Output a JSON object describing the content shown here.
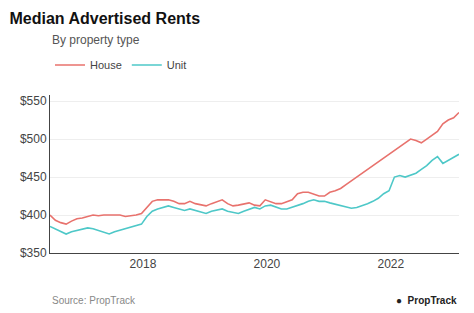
{
  "chart_data": {
    "type": "line",
    "title": "Median Advertised Rents",
    "subtitle": "By property type",
    "annotations": [
      "Source: PropTrack",
      "●  PropTrack"
    ],
    "x": [
      2016.5,
      2016.586842,
      2016.673684,
      2016.760526,
      2016.847368,
      2016.934211,
      2017.021053,
      2017.107895,
      2017.194737,
      2017.281579,
      2017.368421,
      2017.455263,
      2017.542105,
      2017.628947,
      2017.715789,
      2017.802632,
      2017.889474,
      2017.976316,
      2018.063158,
      2018.15,
      2018.236842,
      2018.323684,
      2018.410526,
      2018.497368,
      2018.584211,
      2018.671053,
      2018.757895,
      2018.844737,
      2018.931579,
      2019.018421,
      2019.105263,
      2019.192105,
      2019.278947,
      2019.365789,
      2019.452632,
      2019.539474,
      2019.626316,
      2019.713158,
      2019.8,
      2019.886842,
      2019.973684,
      2020.060526,
      2020.147368,
      2020.234211,
      2020.321053,
      2020.407895,
      2020.494737,
      2020.581579,
      2020.668421,
      2020.755263,
      2020.842105,
      2020.928947,
      2021.015789,
      2021.102632,
      2021.189474,
      2021.276316,
      2021.363158,
      2021.45,
      2021.536842,
      2021.623684,
      2021.710526,
      2021.797368,
      2021.884211,
      2021.971053,
      2022.057895,
      2022.144737,
      2022.231579,
      2022.318421,
      2022.405263,
      2022.492105,
      2022.578947,
      2022.665789,
      2022.752632,
      2022.839474,
      2022.926316,
      2023.013158,
      2023.1
    ],
    "series": [
      {
        "name": "House",
        "color": "#e8726d",
        "values": [
          400,
          393,
          390,
          388,
          392,
          395,
          396,
          398,
          400,
          399,
          400,
          400,
          400,
          400,
          398,
          399,
          400,
          402,
          410,
          418,
          420,
          420,
          420,
          418,
          415,
          415,
          418,
          415,
          413,
          412,
          415,
          418,
          420,
          415,
          412,
          413,
          415,
          416,
          413,
          412,
          420,
          418,
          415,
          415,
          418,
          420,
          428,
          430,
          430,
          428,
          425,
          425,
          430,
          432,
          435,
          440,
          445,
          450,
          455,
          460,
          465,
          470,
          475,
          480,
          485,
          490,
          495,
          500,
          498,
          495,
          500,
          505,
          510,
          520,
          525,
          528,
          535
        ]
      },
      {
        "name": "Unit",
        "color": "#4ec8c8",
        "values": [
          385,
          382,
          378,
          375,
          378,
          380,
          382,
          383,
          382,
          380,
          378,
          375,
          378,
          380,
          382,
          383,
          385,
          388,
          398,
          405,
          408,
          410,
          412,
          410,
          408,
          406,
          408,
          406,
          405,
          402,
          405,
          407,
          408,
          405,
          403,
          402,
          405,
          408,
          410,
          408,
          412,
          413,
          410,
          408,
          408,
          410,
          412,
          415,
          418,
          420,
          418,
          418,
          416,
          414,
          412,
          410,
          409,
          410,
          412,
          415,
          418,
          422,
          428,
          432,
          450,
          452,
          450,
          452,
          455,
          460,
          465,
          472,
          477,
          468,
          472,
          476,
          480
        ]
      }
    ],
    "xlim": [
      2016.5,
      2023.1
    ],
    "xticks": [
      2018,
      2020,
      2022
    ],
    "ylim": [
      350,
      558
    ],
    "yticks": [
      {
        "value": 350,
        "label": "$350"
      },
      {
        "value": 400,
        "label": "$400"
      },
      {
        "value": 450,
        "label": "$450"
      },
      {
        "value": 500,
        "label": "$500"
      },
      {
        "value": 550,
        "label": "$550"
      }
    ],
    "grid": true,
    "legend": "upper left"
  }
}
